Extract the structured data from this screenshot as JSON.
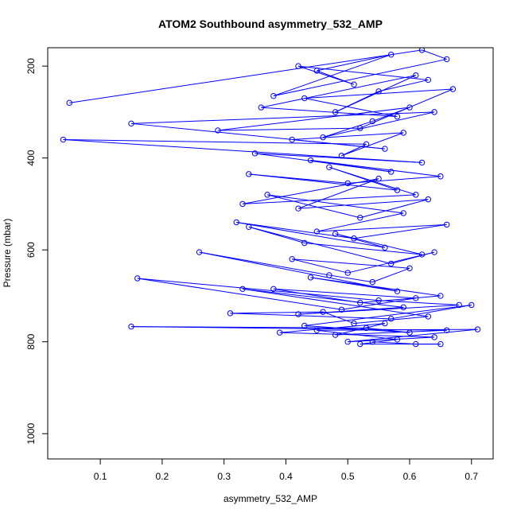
{
  "chart_data": {
    "type": "line",
    "title": "ATOM2 Southbound asymmetry_532_AMP",
    "xlabel": "asymmetry_532_AMP",
    "ylabel": "Pressure (mbar)",
    "xlim": [
      0.015,
      0.735
    ],
    "ylim": [
      1055,
      160
    ],
    "y_reversed": true,
    "x_ticks": [
      0.1,
      0.2,
      0.3,
      0.4,
      0.5,
      0.6,
      0.7
    ],
    "y_ticks": [
      200,
      400,
      600,
      800,
      1000
    ],
    "x_tick_labels": [
      "0.1",
      "0.2",
      "0.3",
      "0.4",
      "0.5",
      "0.6",
      "0.7"
    ],
    "y_tick_labels": [
      "200",
      "400",
      "600",
      "800",
      "1000"
    ],
    "grid": false,
    "marker": "open-circle",
    "series": [
      {
        "color": "#0000ff",
        "x": [
          0.05,
          0.62,
          0.66,
          0.38,
          0.57,
          0.45,
          0.51,
          0.42,
          0.63,
          0.55,
          0.48,
          0.61,
          0.36,
          0.58,
          0.43,
          0.67,
          0.52,
          0.29,
          0.6,
          0.54,
          0.46,
          0.64,
          0.15,
          0.56,
          0.41,
          0.59,
          0.49,
          0.53,
          0.04,
          0.62,
          0.35,
          0.57,
          0.44,
          0.65,
          0.5,
          0.34,
          0.58,
          0.47,
          0.61,
          0.33,
          0.55,
          0.42,
          0.63,
          0.52,
          0.37,
          0.59,
          0.45,
          0.66,
          0.51,
          0.32,
          0.56,
          0.48,
          0.62,
          0.43,
          0.34,
          0.57,
          0.64,
          0.5,
          0.41,
          0.6,
          0.54,
          0.47,
          0.26,
          0.58,
          0.44,
          0.65,
          0.52,
          0.38,
          0.61,
          0.49,
          0.16,
          0.55,
          0.68,
          0.42,
          0.59,
          0.33,
          0.63,
          0.51,
          0.46,
          0.31,
          0.57,
          0.7,
          0.43,
          0.6,
          0.53,
          0.15,
          0.66,
          0.48,
          0.56,
          0.39,
          0.64,
          0.5,
          0.71,
          0.45,
          0.58,
          0.52,
          0.65,
          0.61,
          0.54
        ],
        "y": [
          280,
          165,
          185,
          265,
          175,
          210,
          240,
          200,
          230,
          255,
          300,
          220,
          290,
          310,
          270,
          250,
          335,
          340,
          290,
          320,
          355,
          300,
          325,
          380,
          360,
          345,
          395,
          370,
          360,
          410,
          390,
          430,
          405,
          440,
          455,
          435,
          470,
          420,
          480,
          500,
          445,
          510,
          490,
          530,
          480,
          520,
          560,
          545,
          575,
          540,
          595,
          565,
          610,
          585,
          550,
          630,
          605,
          650,
          620,
          640,
          670,
          655,
          605,
          690,
          660,
          700,
          715,
          685,
          705,
          730,
          662,
          710,
          720,
          740,
          725,
          685,
          745,
          760,
          735,
          738,
          750,
          720,
          765,
          780,
          770,
          767,
          775,
          785,
          760,
          780,
          790,
          800,
          773,
          775,
          795,
          805,
          805,
          805,
          800
        ]
      }
    ]
  }
}
